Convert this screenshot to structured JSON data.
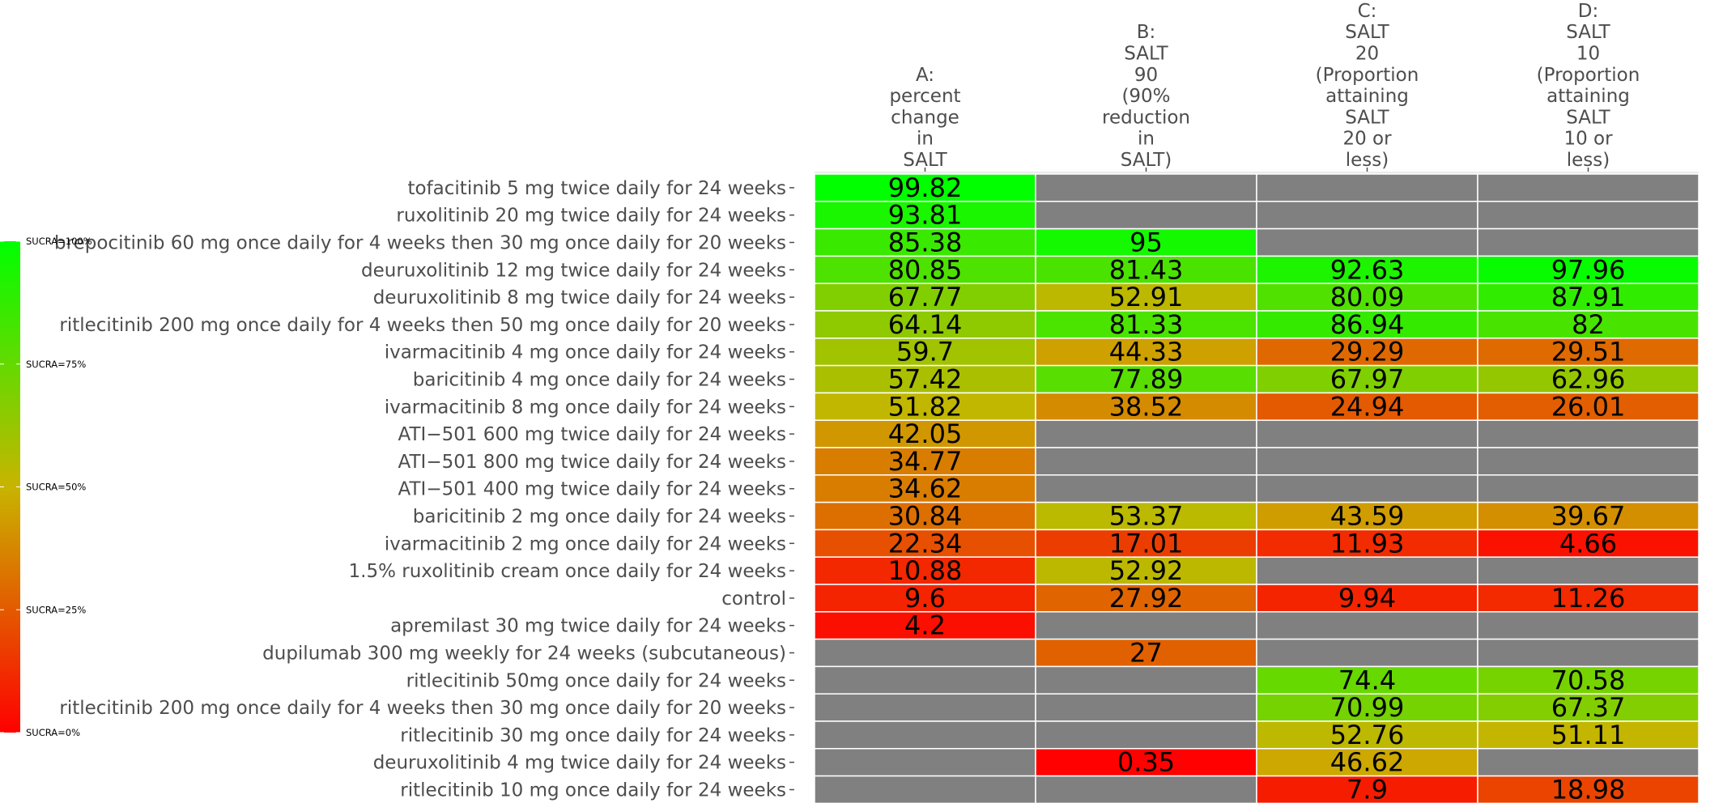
{
  "chart_data": {
    "type": "heatmap",
    "title": "",
    "xlabel": "",
    "ylabel": "",
    "columns": [
      {
        "id": "A",
        "label_lines": [
          "A:",
          "percent",
          "change",
          "in",
          "SALT"
        ]
      },
      {
        "id": "B",
        "label_lines": [
          "B:",
          "SALT",
          "90",
          "(90%",
          "reduction",
          "in",
          "SALT)"
        ]
      },
      {
        "id": "C",
        "label_lines": [
          "C:",
          "SALT",
          "20",
          "(Proportion",
          "attaining",
          "SALT",
          "20 or",
          "less)"
        ]
      },
      {
        "id": "D",
        "label_lines": [
          "D:",
          "SALT",
          "10",
          "(Proportion",
          "attaining",
          "SALT",
          "10 or",
          "less)"
        ]
      }
    ],
    "rows": [
      "tofacitinib 5 mg twice daily for 24 weeks",
      "ruxolitinib 20 mg twice daily for 24 weeks",
      "brepocitinib 60 mg once daily for 4 weeks then 30 mg once daily for 20 weeks",
      "deuruxolitinib 12 mg twice daily for 24 weeks",
      "deuruxolitinib 8 mg twice daily for 24 weeks",
      "ritlecitinib 200 mg once daily for 4 weeks then 50 mg once daily for 20 weeks",
      "ivarmacitinib 4 mg once daily for 24 weeks",
      "baricitinib 4 mg once daily for 24 weeks",
      "ivarmacitinib 8 mg once daily for 24 weeks",
      "ATI−501 600 mg twice daily for 24 weeks",
      "ATI−501 800 mg twice daily for 24 weeks",
      "ATI−501 400 mg twice daily for 24 weeks",
      "baricitinib 2 mg once daily for 24 weeks",
      "ivarmacitinib 2 mg once daily for 24 weeks",
      "1.5% ruxolitinib cream once daily for 24 weeks",
      "control",
      "apremilast 30 mg twice daily for 24 weeks",
      "dupilumab 300 mg weekly for 24 weeks (subcutaneous)",
      "ritlecitinib 50mg once daily for 24 weeks",
      "ritlecitinib 200 mg once daily for 4 weeks then 30 mg once daily for 20 weeks",
      "ritlecitinib 30 mg once daily for 24 weeks",
      "deuruxolitinib 4 mg twice daily for 24 weeks",
      "ritlecitinib 10 mg once daily for 24 weeks"
    ],
    "values": [
      [
        "99.82",
        null,
        null,
        null
      ],
      [
        "93.81",
        null,
        null,
        null
      ],
      [
        "85.38",
        "95",
        null,
        null
      ],
      [
        "80.85",
        "81.43",
        "92.63",
        "97.96"
      ],
      [
        "67.77",
        "52.91",
        "80.09",
        "87.91"
      ],
      [
        "64.14",
        "81.33",
        "86.94",
        "82"
      ],
      [
        "59.7",
        "44.33",
        "29.29",
        "29.51"
      ],
      [
        "57.42",
        "77.89",
        "67.97",
        "62.96"
      ],
      [
        "51.82",
        "38.52",
        "24.94",
        "26.01"
      ],
      [
        "42.05",
        null,
        null,
        null
      ],
      [
        "34.77",
        null,
        null,
        null
      ],
      [
        "34.62",
        null,
        null,
        null
      ],
      [
        "30.84",
        "53.37",
        "43.59",
        "39.67"
      ],
      [
        "22.34",
        "17.01",
        "11.93",
        "4.66"
      ],
      [
        "10.88",
        "52.92",
        null,
        null
      ],
      [
        "9.6",
        "27.92",
        "9.94",
        "11.26"
      ],
      [
        "4.2",
        null,
        null,
        null
      ],
      [
        null,
        "27",
        null,
        null
      ],
      [
        null,
        null,
        "74.4",
        "70.58"
      ],
      [
        null,
        null,
        "70.99",
        "67.37"
      ],
      [
        null,
        null,
        "52.76",
        "51.11"
      ],
      [
        null,
        "0.35",
        "46.62",
        null
      ],
      [
        null,
        null,
        "7.9",
        "18.98"
      ]
    ],
    "color_scale": {
      "low": "#ff0000",
      "mid": "#c8b400",
      "high": "#00ff00",
      "missing": "#808080"
    },
    "legend": {
      "placement": "left",
      "labels": [
        "SUCRA=100%",
        "SUCRA=75%",
        "SUCRA=50%",
        "SUCRA=25%",
        "SUCRA=0%"
      ]
    }
  }
}
